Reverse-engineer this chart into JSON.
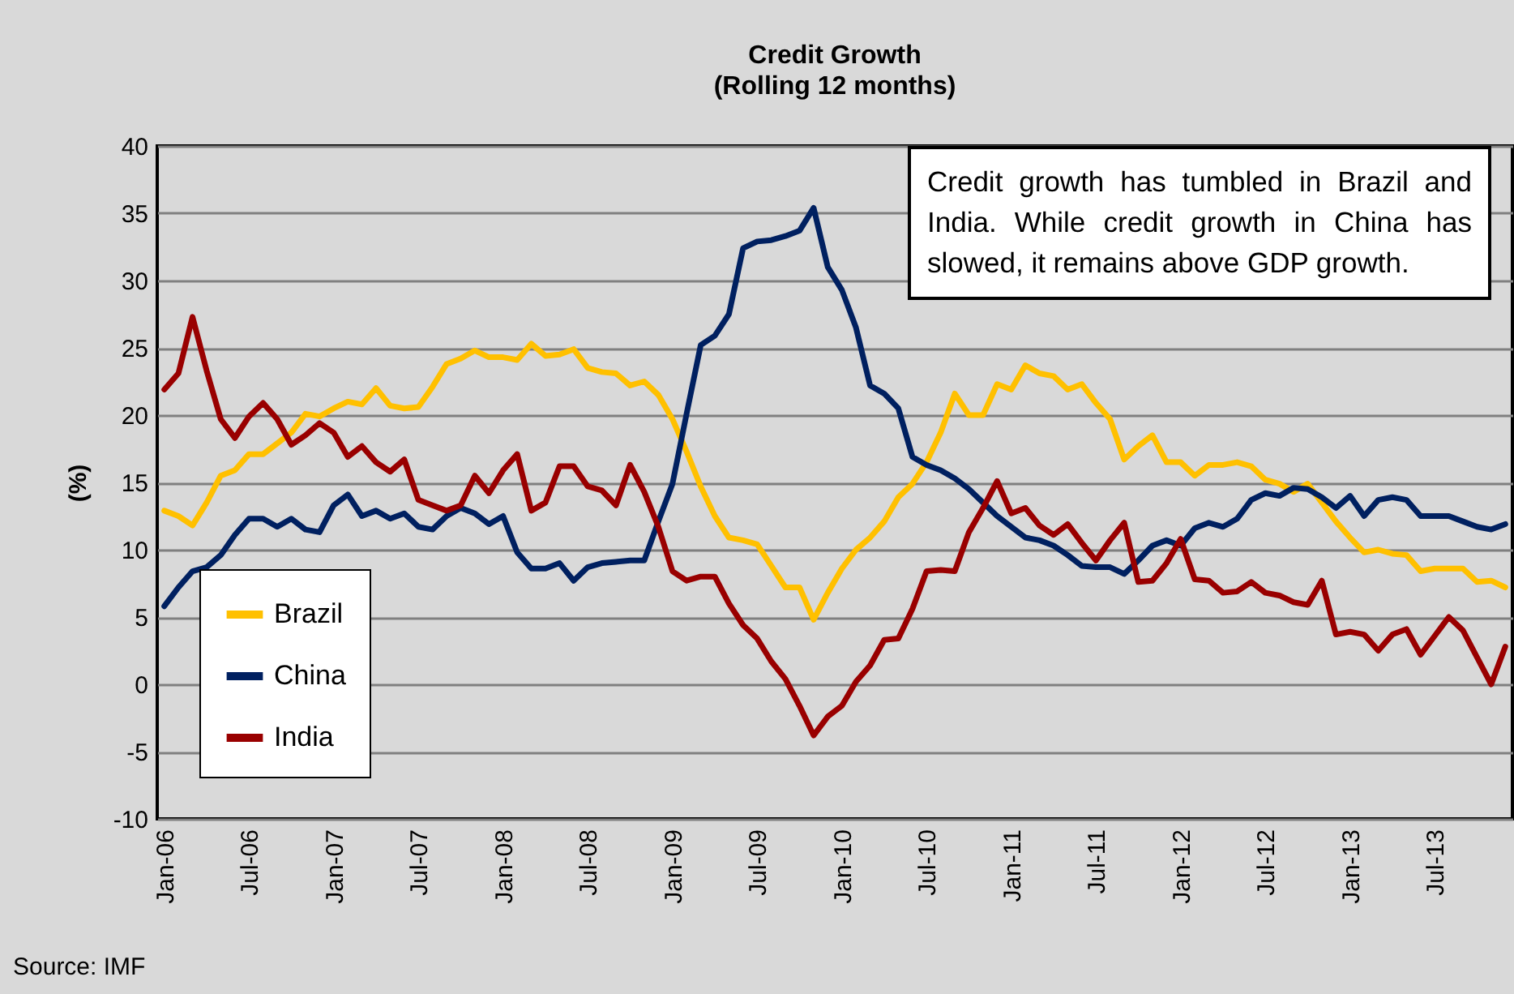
{
  "chart_data": {
    "type": "line",
    "title": "Credit Growth",
    "subtitle": "(Rolling 12 months)",
    "ylabel": "(%)",
    "categories": [
      "Jan-06",
      null,
      null,
      null,
      null,
      null,
      "Jul-06",
      null,
      null,
      null,
      null,
      null,
      "Jan-07",
      null,
      null,
      null,
      null,
      null,
      "Jul-07",
      null,
      null,
      null,
      null,
      null,
      "Jan-08",
      null,
      null,
      null,
      null,
      null,
      "Jul-08",
      null,
      null,
      null,
      null,
      null,
      "Jan-09",
      null,
      null,
      null,
      null,
      null,
      "Jul-09",
      null,
      null,
      null,
      null,
      null,
      "Jan-10",
      null,
      null,
      null,
      null,
      null,
      "Jul-10",
      null,
      null,
      null,
      null,
      null,
      "Jan-11",
      null,
      null,
      null,
      null,
      null,
      "Jul-11",
      null,
      null,
      null,
      null,
      null,
      "Jan-12",
      null,
      null,
      null,
      null,
      null,
      "Jul-12",
      null,
      null,
      null,
      null,
      null,
      "Jan-13",
      null,
      null,
      null,
      null,
      null,
      "Jul-13",
      null,
      null,
      null,
      null,
      null
    ],
    "series": [
      {
        "name": "Brazil",
        "color": "#ffc000",
        "values": [
          12.9,
          12.5,
          11.8,
          13.5,
          15.5,
          15.9,
          17.1,
          17.1,
          17.9,
          18.7,
          20.1,
          19.9,
          20.5,
          21.0,
          20.8,
          22.0,
          20.7,
          20.5,
          20.6,
          22.1,
          23.8,
          24.2,
          24.8,
          24.3,
          24.3,
          24.1,
          25.3,
          24.4,
          24.5,
          24.9,
          23.5,
          23.2,
          23.1,
          22.2,
          22.5,
          21.5,
          19.7,
          17.3,
          14.7,
          12.5,
          10.9,
          10.7,
          10.4,
          8.8,
          7.2,
          7.2,
          4.8,
          6.8,
          8.6,
          10.0,
          10.9,
          12.1,
          13.9,
          14.9,
          16.5,
          18.7,
          21.6,
          20.0,
          20.0,
          22.3,
          21.9,
          23.7,
          23.1,
          22.9,
          21.9,
          22.3,
          20.9,
          19.7,
          16.7,
          17.7,
          18.5,
          16.5,
          16.5,
          15.5,
          16.3,
          16.3,
          16.5,
          16.2,
          15.2,
          14.9,
          14.3,
          14.9,
          13.5,
          12.1,
          10.9,
          9.8,
          10.0,
          9.7,
          9.6,
          8.4,
          8.6,
          8.6,
          8.6,
          7.6,
          7.7,
          7.2
        ]
      },
      {
        "name": "China",
        "color": "#002060",
        "values": [
          5.8,
          7.2,
          8.4,
          8.7,
          9.6,
          11.1,
          12.3,
          12.3,
          11.7,
          12.3,
          11.5,
          11.3,
          13.3,
          14.1,
          12.5,
          12.9,
          12.3,
          12.7,
          11.7,
          11.5,
          12.5,
          13.1,
          12.7,
          11.9,
          12.5,
          9.8,
          8.6,
          8.6,
          9.0,
          7.7,
          8.7,
          9.0,
          9.1,
          9.2,
          9.2,
          12.1,
          14.9,
          20.1,
          25.2,
          25.9,
          27.5,
          32.4,
          32.9,
          33.0,
          33.3,
          33.7,
          35.4,
          31.0,
          29.3,
          26.5,
          22.2,
          21.6,
          20.5,
          16.9,
          16.3,
          15.9,
          15.3,
          14.5,
          13.5,
          12.5,
          11.7,
          10.9,
          10.7,
          10.3,
          9.6,
          8.8,
          8.7,
          8.7,
          8.2,
          9.2,
          10.3,
          10.7,
          10.3,
          11.6,
          12.0,
          11.7,
          12.3,
          13.7,
          14.2,
          14.0,
          14.6,
          14.5,
          13.9,
          13.1,
          14.0,
          12.5,
          13.7,
          13.9,
          13.7,
          12.5,
          12.5,
          12.5,
          12.1,
          11.7,
          11.5,
          11.9
        ]
      },
      {
        "name": "India",
        "color": "#990000",
        "values": [
          21.9,
          23.1,
          27.3,
          23.3,
          19.7,
          18.3,
          19.9,
          20.9,
          19.7,
          17.8,
          18.5,
          19.4,
          18.7,
          16.9,
          17.7,
          16.5,
          15.8,
          16.7,
          13.7,
          13.3,
          12.9,
          13.3,
          15.5,
          14.2,
          15.9,
          17.1,
          12.9,
          13.5,
          16.2,
          16.2,
          14.7,
          14.4,
          13.3,
          16.3,
          14.3,
          11.7,
          8.4,
          7.7,
          8.0,
          8.0,
          6.0,
          4.4,
          3.4,
          1.7,
          0.4,
          -1.6,
          -3.8,
          -2.4,
          -1.6,
          0.2,
          1.4,
          3.3,
          3.4,
          5.6,
          8.4,
          8.5,
          8.4,
          11.3,
          13.1,
          15.1,
          12.7,
          13.1,
          11.8,
          11.1,
          11.9,
          10.5,
          9.2,
          10.7,
          12.0,
          7.6,
          7.7,
          9.0,
          10.8,
          7.8,
          7.7,
          6.8,
          6.9,
          7.6,
          6.8,
          6.6,
          6.1,
          5.9,
          7.7,
          3.7,
          3.9,
          3.7,
          2.5,
          3.7,
          4.1,
          2.2,
          3.6,
          5.0,
          4.0,
          2.0,
          0.0,
          2.8
        ]
      }
    ],
    "ylim": [
      -10,
      40
    ],
    "yticks": [
      -10,
      -5,
      0,
      5,
      10,
      15,
      20,
      25,
      30,
      35,
      40
    ],
    "grid": "y",
    "legend": "bottom left",
    "line_style": "solid",
    "annotations": [
      "Credit growth has tumbled in Brazil and India. While credit growth in China has slowed, it remains above GDP growth.",
      "Source:  IMF"
    ]
  }
}
